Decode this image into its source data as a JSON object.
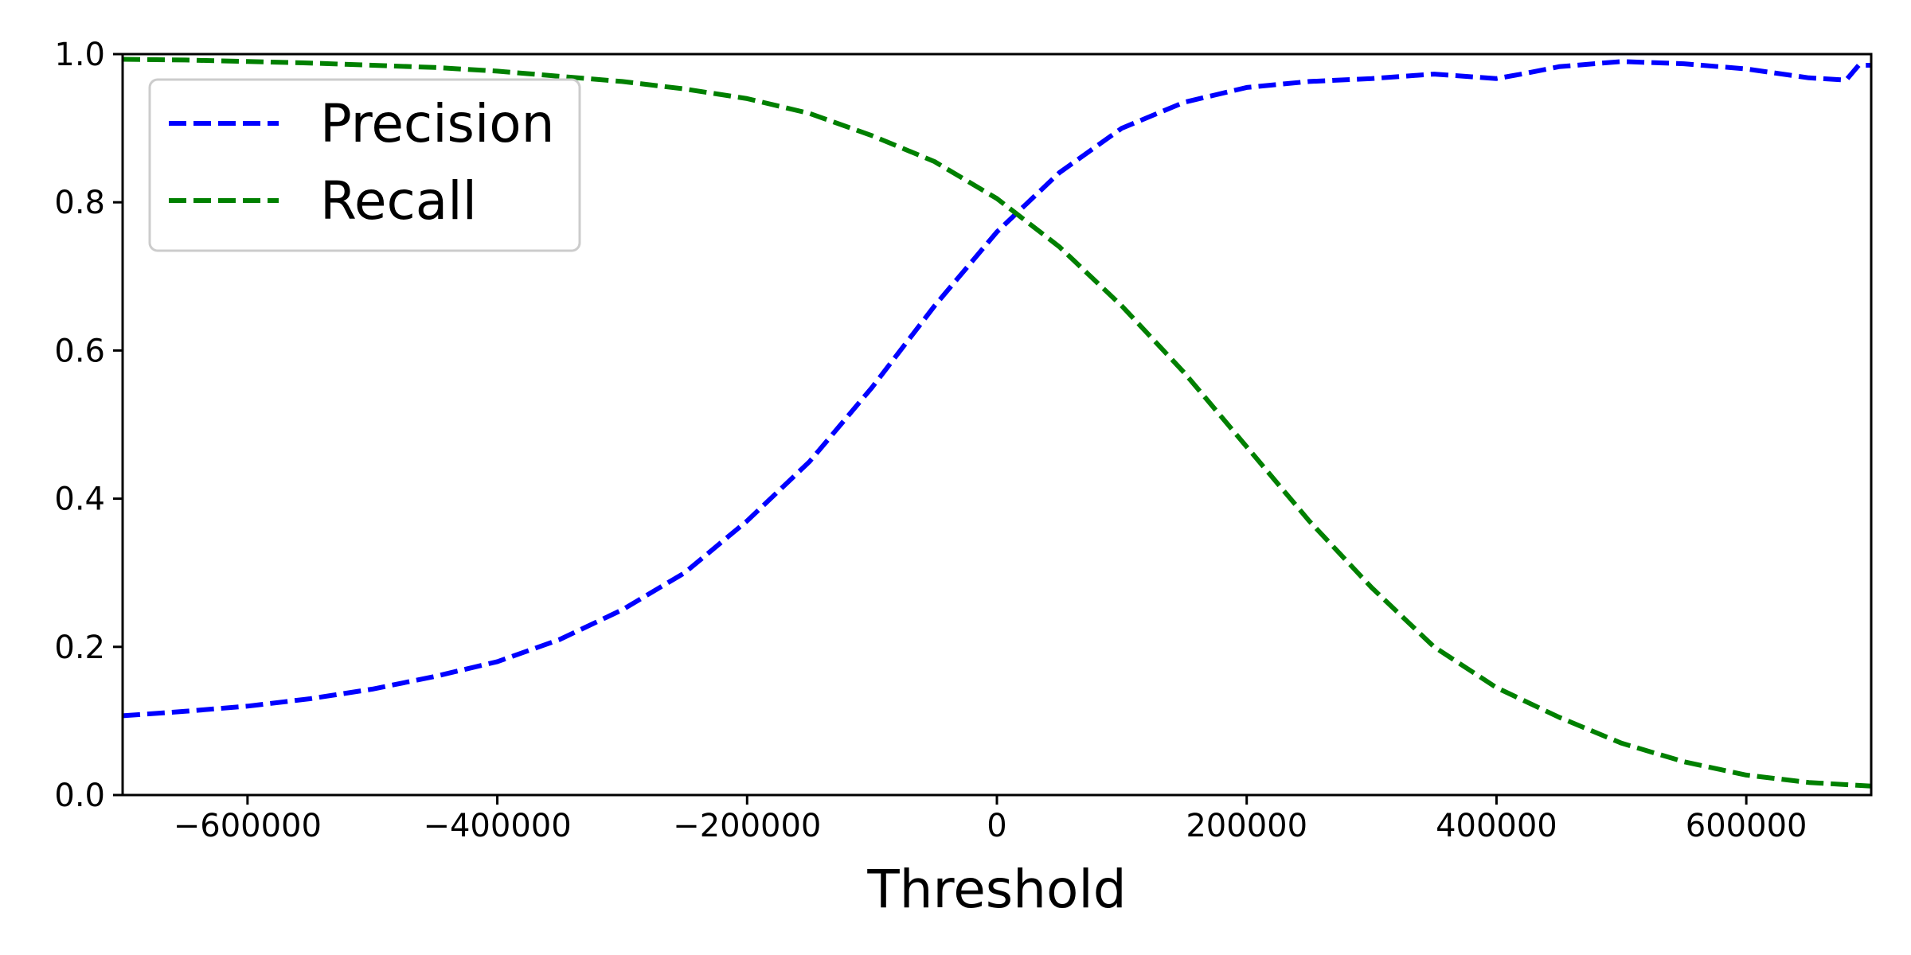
{
  "chart_data": {
    "type": "line",
    "title": "",
    "xlabel": "Threshold",
    "ylabel": "",
    "xlim": [
      -700000,
      700000
    ],
    "ylim": [
      0.0,
      1.0
    ],
    "x_ticks": [
      -600000,
      -400000,
      -200000,
      0,
      200000,
      400000,
      600000
    ],
    "x_tick_labels": [
      "−600000",
      "−400000",
      "−200000",
      "0",
      "200000",
      "400000",
      "600000"
    ],
    "y_ticks": [
      0.0,
      0.2,
      0.4,
      0.6,
      0.8,
      1.0
    ],
    "y_tick_labels": [
      "0.0",
      "0.2",
      "0.4",
      "0.6",
      "0.8",
      "1.0"
    ],
    "grid": false,
    "legend_position": "top-left",
    "series": [
      {
        "name": "Precision",
        "color": "#0000ff",
        "line_style": "dashed",
        "x": [
          -700000,
          -650000,
          -600000,
          -550000,
          -500000,
          -450000,
          -400000,
          -350000,
          -300000,
          -250000,
          -200000,
          -150000,
          -100000,
          -50000,
          0,
          50000,
          100000,
          150000,
          200000,
          250000,
          300000,
          350000,
          400000,
          420000,
          450000,
          500000,
          550000,
          600000,
          650000,
          680000,
          690000,
          700000
        ],
        "y": [
          0.107,
          0.113,
          0.12,
          0.13,
          0.143,
          0.16,
          0.18,
          0.21,
          0.25,
          0.3,
          0.37,
          0.45,
          0.55,
          0.66,
          0.76,
          0.84,
          0.9,
          0.935,
          0.955,
          0.963,
          0.967,
          0.973,
          0.967,
          0.973,
          0.983,
          0.99,
          0.987,
          0.98,
          0.968,
          0.965,
          0.985,
          0.985
        ]
      },
      {
        "name": "Recall",
        "color": "#008000",
        "line_style": "dashed",
        "x": [
          -700000,
          -650000,
          -600000,
          -550000,
          -500000,
          -450000,
          -400000,
          -350000,
          -300000,
          -250000,
          -200000,
          -150000,
          -100000,
          -50000,
          0,
          50000,
          100000,
          150000,
          200000,
          250000,
          300000,
          350000,
          400000,
          450000,
          500000,
          550000,
          600000,
          650000,
          700000
        ],
        "y": [
          0.993,
          0.992,
          0.99,
          0.988,
          0.985,
          0.982,
          0.977,
          0.97,
          0.963,
          0.953,
          0.94,
          0.92,
          0.89,
          0.855,
          0.805,
          0.74,
          0.66,
          0.57,
          0.47,
          0.37,
          0.28,
          0.2,
          0.145,
          0.105,
          0.07,
          0.045,
          0.027,
          0.017,
          0.012
        ]
      }
    ]
  }
}
